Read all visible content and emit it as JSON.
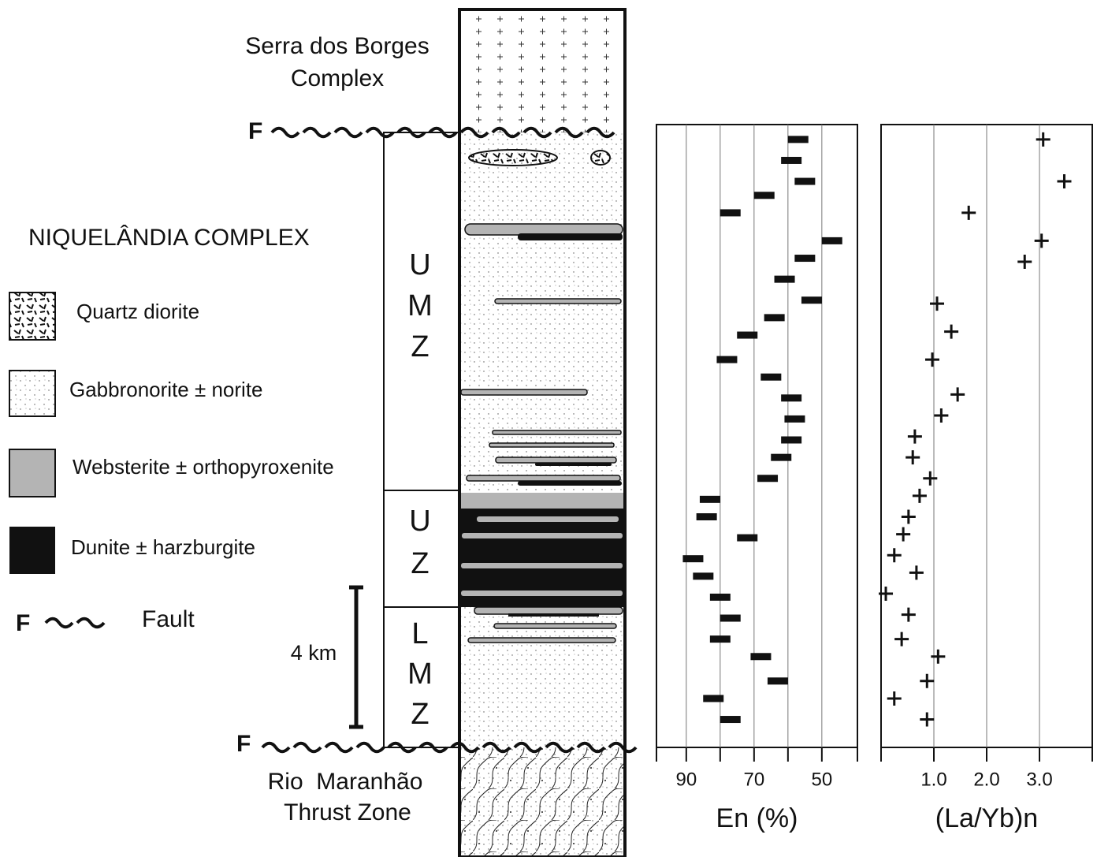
{
  "column": {
    "top_unit": [
      "Serra dos Borges",
      "Complex"
    ],
    "bottom_unit": [
      "Rio  Maranhão",
      "Thrust Zone"
    ],
    "fault_labels": [
      "F",
      "F"
    ],
    "zones": [
      [
        "U",
        "M",
        "Z"
      ],
      [
        "U",
        "Z"
      ],
      [
        "L",
        "M",
        "Z"
      ]
    ],
    "scale_bar": "4 km"
  },
  "legend": {
    "title": "NIQUELÂNDIA COMPLEX",
    "items": [
      "Quartz diorite",
      "Gabbronorite ± norite",
      "Websterite ± orthopyroxenite",
      "Dunite ± harzburgite"
    ],
    "fault_symbol": "F",
    "fault_label": "Fault"
  },
  "chart_data": [
    {
      "type": "scatter",
      "marker": "dash",
      "x_label": "En (%)",
      "xlim": [
        98.8,
        39.5
      ],
      "xticks": [
        90,
        70,
        50
      ],
      "grid_lines": [
        90,
        80,
        70,
        60,
        50
      ],
      "ylim": [
        0,
        17.6
      ],
      "color": "#111111",
      "y": [
        17.4,
        16.8,
        16.2,
        15.8,
        15.3,
        14.5,
        14.0,
        13.4,
        12.8,
        12.3,
        11.8,
        11.1,
        10.6,
        10.0,
        9.4,
        8.8,
        8.3,
        7.7,
        7.1,
        6.6,
        6.0,
        5.4,
        4.9,
        4.3,
        3.7,
        3.1,
        2.6,
        1.9,
        1.4,
        0.8
      ],
      "values": [
        57,
        59,
        55,
        67,
        77,
        47,
        55,
        61,
        53,
        64,
        72,
        78,
        65,
        59,
        58,
        59,
        62,
        66,
        83,
        84,
        72,
        88,
        85,
        80,
        77,
        80,
        68,
        63,
        82,
        77
      ]
    },
    {
      "type": "scatter",
      "marker": "plus",
      "x_label": "(La/Yb)n",
      "xlim": [
        0,
        4.0
      ],
      "xticks": [
        {
          "value": 1,
          "label": "1.0"
        },
        {
          "value": 2,
          "label": "2.0"
        },
        {
          "value": 3,
          "label": "3.0"
        }
      ],
      "grid_lines": [
        1,
        2,
        3
      ],
      "ylim": [
        0,
        17.6
      ],
      "color": "#111111",
      "y": [
        17.4,
        16.2,
        15.3,
        14.5,
        13.9,
        12.7,
        11.9,
        11.1,
        10.1,
        9.5,
        8.9,
        8.3,
        7.7,
        7.2,
        6.6,
        6.1,
        5.5,
        5.0,
        4.4,
        3.8,
        3.1,
        2.6,
        1.9,
        1.4,
        0.8
      ],
      "values": [
        3.07,
        3.47,
        1.66,
        3.04,
        2.72,
        1.06,
        1.33,
        0.97,
        1.45,
        1.14,
        0.64,
        0.6,
        0.93,
        0.73,
        0.52,
        0.42,
        0.25,
        0.67,
        0.09,
        0.52,
        0.39,
        1.08,
        0.87,
        0.25,
        0.87
      ]
    }
  ]
}
